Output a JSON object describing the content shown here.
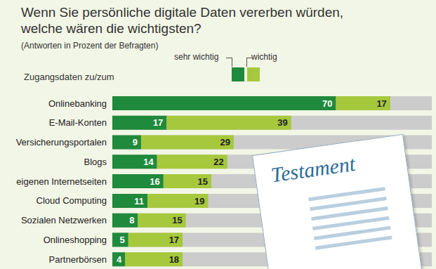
{
  "chart_data": {
    "type": "bar",
    "orientation": "horizontal",
    "stacked": true,
    "data_labels": true,
    "tick_labels": "y",
    "title": "Wenn Sie persönliche digitale Daten vererben würden, welche wären die wichtigsten?",
    "subtitle": "(Antworten in Prozent der Befragten)",
    "y_label": "Zugangsdaten zu/zum",
    "annotations": [
      "Testament"
    ],
    "categories": [
      "Onlinebanking",
      "E-Mail-Konten",
      "Versicherungsportalen",
      "Blogs",
      "eigenen Internetseiten",
      "Cloud Computing",
      "Sozialen Netzwerken",
      "Onlineshopping",
      "Partnerbörsen"
    ],
    "series": [
      {
        "name": "sehr wichtig",
        "color": "#1f8a3b",
        "values": [
          70,
          17,
          9,
          14,
          16,
          11,
          8,
          5,
          4
        ]
      },
      {
        "name": "wichtig",
        "color": "#a6c83c",
        "values": [
          17,
          39,
          29,
          22,
          15,
          19,
          15,
          17,
          18
        ]
      }
    ],
    "xlim": [
      0,
      100
    ]
  }
}
